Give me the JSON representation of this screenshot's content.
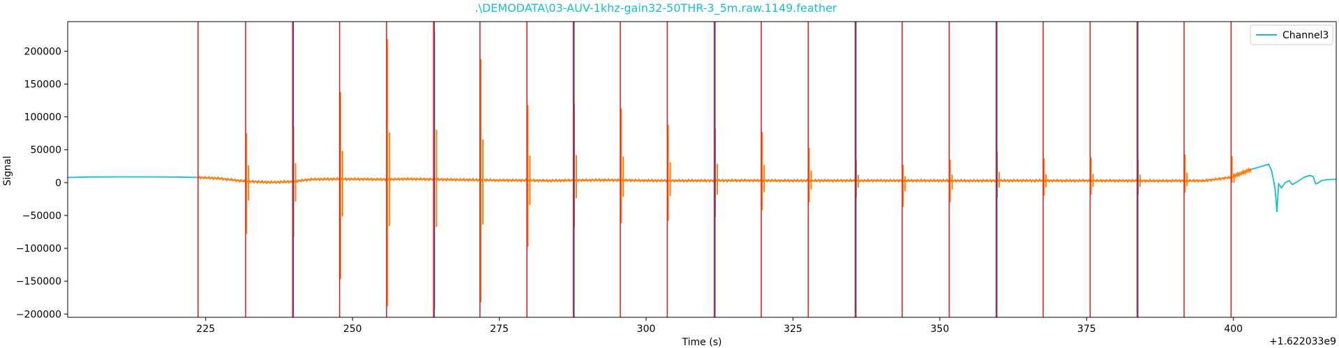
{
  "chart_data": {
    "type": "line",
    "title": ".\\DEMODATA\\03-AUV-1khz-gain32-50THR-3_5m.raw.1149.feather",
    "xlabel": "Time (s)",
    "ylabel": "Signal",
    "x_offset_label": "+1.622033e9",
    "xlim": [
      201.5,
      417.5
    ],
    "ylim": [
      -205000,
      245000
    ],
    "xticks": [
      225,
      250,
      275,
      300,
      325,
      350,
      375,
      400
    ],
    "yticks": [
      -200000,
      -150000,
      -100000,
      -50000,
      0,
      50000,
      100000,
      150000,
      200000
    ],
    "legend": {
      "position": "top-right",
      "entries": [
        {
          "label": "Channel3",
          "color": "#17becf"
        }
      ]
    },
    "colors": {
      "channel": "#17becf",
      "event": "#ff7f0e",
      "marker": "#d62728",
      "marker_alt": "#1f3fbf"
    },
    "series": [
      {
        "name": "Channel3",
        "color": "#17becf",
        "points": [
          [
            201.5,
            7800
          ],
          [
            205,
            8500
          ],
          [
            210,
            8800
          ],
          [
            215,
            8700
          ],
          [
            220,
            8400
          ],
          [
            223.7,
            7900
          ],
          [
            227,
            6500
          ],
          [
            231.8,
            2000
          ],
          [
            236,
            500
          ],
          [
            239.8,
            1500
          ],
          [
            243,
            5000
          ],
          [
            247.8,
            5500
          ],
          [
            251,
            5200
          ],
          [
            255.8,
            4800
          ],
          [
            259,
            5500
          ],
          [
            263.8,
            5000
          ],
          [
            267,
            4500
          ],
          [
            271.7,
            4000
          ],
          [
            275,
            3500
          ],
          [
            279.7,
            3500
          ],
          [
            283,
            3000
          ],
          [
            287.6,
            3500
          ],
          [
            291,
            3800
          ],
          [
            295.6,
            3800
          ],
          [
            299,
            3200
          ],
          [
            303.6,
            3000
          ],
          [
            307,
            3000
          ],
          [
            311.6,
            3000
          ],
          [
            315,
            3200
          ],
          [
            319.6,
            3200
          ],
          [
            323,
            3000
          ],
          [
            327.6,
            3000
          ],
          [
            331,
            3100
          ],
          [
            335.6,
            3000
          ],
          [
            339,
            3100
          ],
          [
            343.6,
            3000
          ],
          [
            347,
            3000
          ],
          [
            351.6,
            3000
          ],
          [
            355,
            2800
          ],
          [
            359.6,
            3000
          ],
          [
            363,
            3100
          ],
          [
            367.6,
            3000
          ],
          [
            371,
            2900
          ],
          [
            375.6,
            3000
          ],
          [
            379,
            2900
          ],
          [
            383.6,
            2800
          ],
          [
            387,
            2700
          ],
          [
            391.6,
            2800
          ],
          [
            395,
            2800
          ],
          [
            399.6,
            8000
          ],
          [
            403,
            20000
          ],
          [
            406,
            28000
          ],
          [
            406.5,
            18000
          ],
          [
            406.8,
            5000
          ],
          [
            407.1,
            -10000
          ],
          [
            407.4,
            -45000
          ],
          [
            407.7,
            -2000
          ],
          [
            408.2,
            -8000
          ],
          [
            408.8,
            0
          ],
          [
            409.5,
            3000
          ],
          [
            410,
            -3000
          ],
          [
            411,
            2000
          ],
          [
            412,
            8000
          ],
          [
            413,
            11000
          ],
          [
            413.6,
            9000
          ],
          [
            414,
            -2000
          ],
          [
            414.3,
            -1000
          ],
          [
            415,
            3000
          ],
          [
            416,
            4500
          ],
          [
            417.5,
            5000
          ]
        ]
      }
    ],
    "event_segments": [
      {
        "start": 223.7,
        "end": 231.8,
        "spike_up": 0,
        "spike_down": 0
      },
      {
        "start": 231.8,
        "end": 239.8,
        "spike_up": 75000,
        "spike_down": -78000
      },
      {
        "start": 239.8,
        "end": 247.8,
        "spike_up": 85000,
        "spike_down": -83000
      },
      {
        "start": 247.8,
        "end": 255.8,
        "spike_up": 138000,
        "spike_down": -147000
      },
      {
        "start": 255.8,
        "end": 263.8,
        "spike_up": 218000,
        "spike_down": -188000
      },
      {
        "start": 263.8,
        "end": 271.7,
        "spike_up": 230000,
        "spike_down": -193000
      },
      {
        "start": 271.7,
        "end": 279.7,
        "spike_up": 188000,
        "spike_down": -182000
      },
      {
        "start": 279.7,
        "end": 287.6,
        "spike_up": 118000,
        "spike_down": -98000
      },
      {
        "start": 287.6,
        "end": 295.6,
        "spike_up": 120000,
        "spike_down": -68000
      },
      {
        "start": 295.6,
        "end": 303.6,
        "spike_up": 113000,
        "spike_down": -62000
      },
      {
        "start": 303.6,
        "end": 311.6,
        "spike_up": 88000,
        "spike_down": -58000
      },
      {
        "start": 311.6,
        "end": 319.6,
        "spike_up": 82000,
        "spike_down": -52000
      },
      {
        "start": 319.6,
        "end": 327.6,
        "spike_up": 77000,
        "spike_down": -42000
      },
      {
        "start": 327.6,
        "end": 335.6,
        "spike_up": 53000,
        "spike_down": -30000
      },
      {
        "start": 335.6,
        "end": 343.6,
        "spike_up": 34000,
        "spike_down": -22000
      },
      {
        "start": 343.6,
        "end": 351.6,
        "spike_up": 27000,
        "spike_down": -37000
      },
      {
        "start": 351.6,
        "end": 359.6,
        "spike_up": 35000,
        "spike_down": -30000
      },
      {
        "start": 359.6,
        "end": 367.6,
        "spike_up": 47000,
        "spike_down": -22000
      },
      {
        "start": 367.6,
        "end": 375.6,
        "spike_up": 37000,
        "spike_down": -20000
      },
      {
        "start": 375.6,
        "end": 383.6,
        "spike_up": 38000,
        "spike_down": -18000
      },
      {
        "start": 383.6,
        "end": 391.6,
        "spike_up": 35000,
        "spike_down": -18000
      },
      {
        "start": 391.6,
        "end": 399.6,
        "spike_up": 43000,
        "spike_down": -15000
      },
      {
        "start": 399.6,
        "end": 403.0,
        "spike_up": 40000,
        "spike_down": 0
      }
    ],
    "event_markers": [
      223.7,
      231.8,
      239.8,
      247.8,
      255.8,
      263.8,
      271.7,
      279.7,
      287.6,
      295.6,
      303.6,
      311.6,
      319.6,
      327.6,
      335.6,
      343.6,
      351.6,
      359.6,
      367.6,
      375.6,
      383.6,
      391.6,
      399.6
    ]
  }
}
